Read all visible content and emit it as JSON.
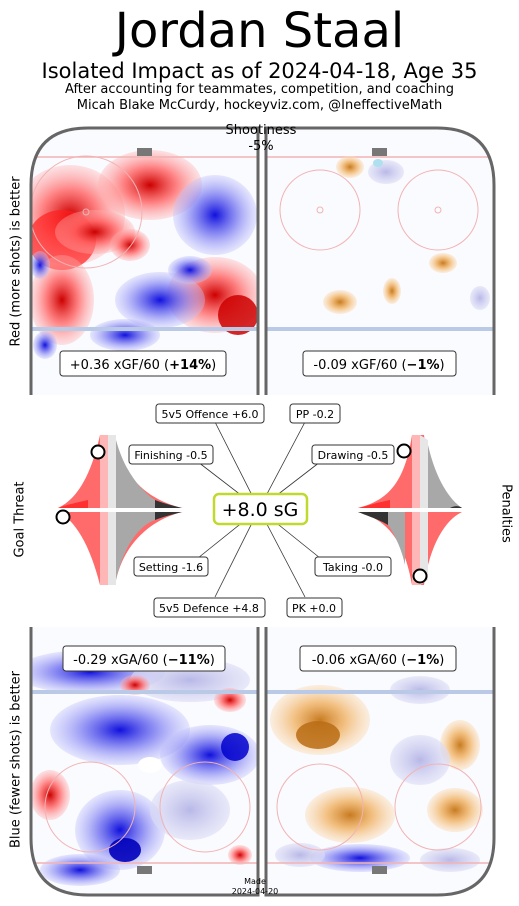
{
  "header": {
    "player_name": "Jordan Staal",
    "subtitle": "Isolated Impact as of 2024-04-18, Age 35",
    "note_line1": "After accounting for teammates, competition, and coaching",
    "note_line2": "Micah Blake McCurdy, hockeyviz.com, @IneffectiveMath"
  },
  "side_labels": {
    "top": "Red (more shots) is better",
    "middle_left": "Goal Threat",
    "middle_right": "Penalties",
    "bottom": "Blue (fewer shots) is better"
  },
  "shootiness": {
    "label": "Shootiness",
    "value": "-5%"
  },
  "colors": {
    "red": "#e8000b",
    "blue": "#1f1fd6",
    "orange": "#e8973a",
    "rink_line": "#666666",
    "blue_line": "#b9c9e6",
    "red_line": "#f2b3b3",
    "total_box": "#c1d82f"
  },
  "chart_data": [
    {
      "type": "heatmap",
      "name": "5v5 offence",
      "label_value": "+0.36 xGF/60 (",
      "label_pct": "+14%",
      "label_tail": ")",
      "xgf60": 0.36,
      "pct": 14
    },
    {
      "type": "heatmap",
      "name": "PP offence",
      "label_value": "-0.09 xGF/60 (",
      "label_pct": "−1%",
      "label_tail": ")",
      "xgf60": -0.09,
      "pct": -1
    },
    {
      "type": "heatmap",
      "name": "5v5 defence",
      "label_value": "-0.29 xGA/60 (",
      "label_pct": "−11%",
      "label_tail": ")",
      "xga60": -0.29,
      "pct": -11
    },
    {
      "type": "heatmap",
      "name": "PK defence",
      "label_value": "-0.06 xGA/60 (",
      "label_pct": "−1%",
      "label_tail": ")",
      "xga60": -0.06,
      "pct": -1
    },
    {
      "type": "bar",
      "name": "sG components",
      "total_label": "+8.0 sG",
      "total": 8.0,
      "components": [
        {
          "key": "o55",
          "label": "5v5 Offence +6.0",
          "value": 6.0
        },
        {
          "key": "pp",
          "label": "PP -0.2",
          "value": -0.2
        },
        {
          "key": "finishing",
          "label": "Finishing -0.5",
          "value": -0.5
        },
        {
          "key": "drawing",
          "label": "Drawing -0.5",
          "value": -0.5
        },
        {
          "key": "setting",
          "label": "Setting -1.6",
          "value": -1.6
        },
        {
          "key": "taking",
          "label": "Taking -0.0",
          "value": -0.0
        },
        {
          "key": "d55",
          "label": "5v5 Defence +4.8",
          "value": 4.8
        },
        {
          "key": "pk",
          "label": "PK +0.0",
          "value": 0.0
        }
      ],
      "percentiles": {
        "finishing_marker": "upper",
        "setting_marker": "lower",
        "drawing_marker": "upper",
        "taking_marker": "lower"
      }
    }
  ],
  "footer": {
    "made_label": "Made",
    "made_date": "2024-04-20"
  }
}
